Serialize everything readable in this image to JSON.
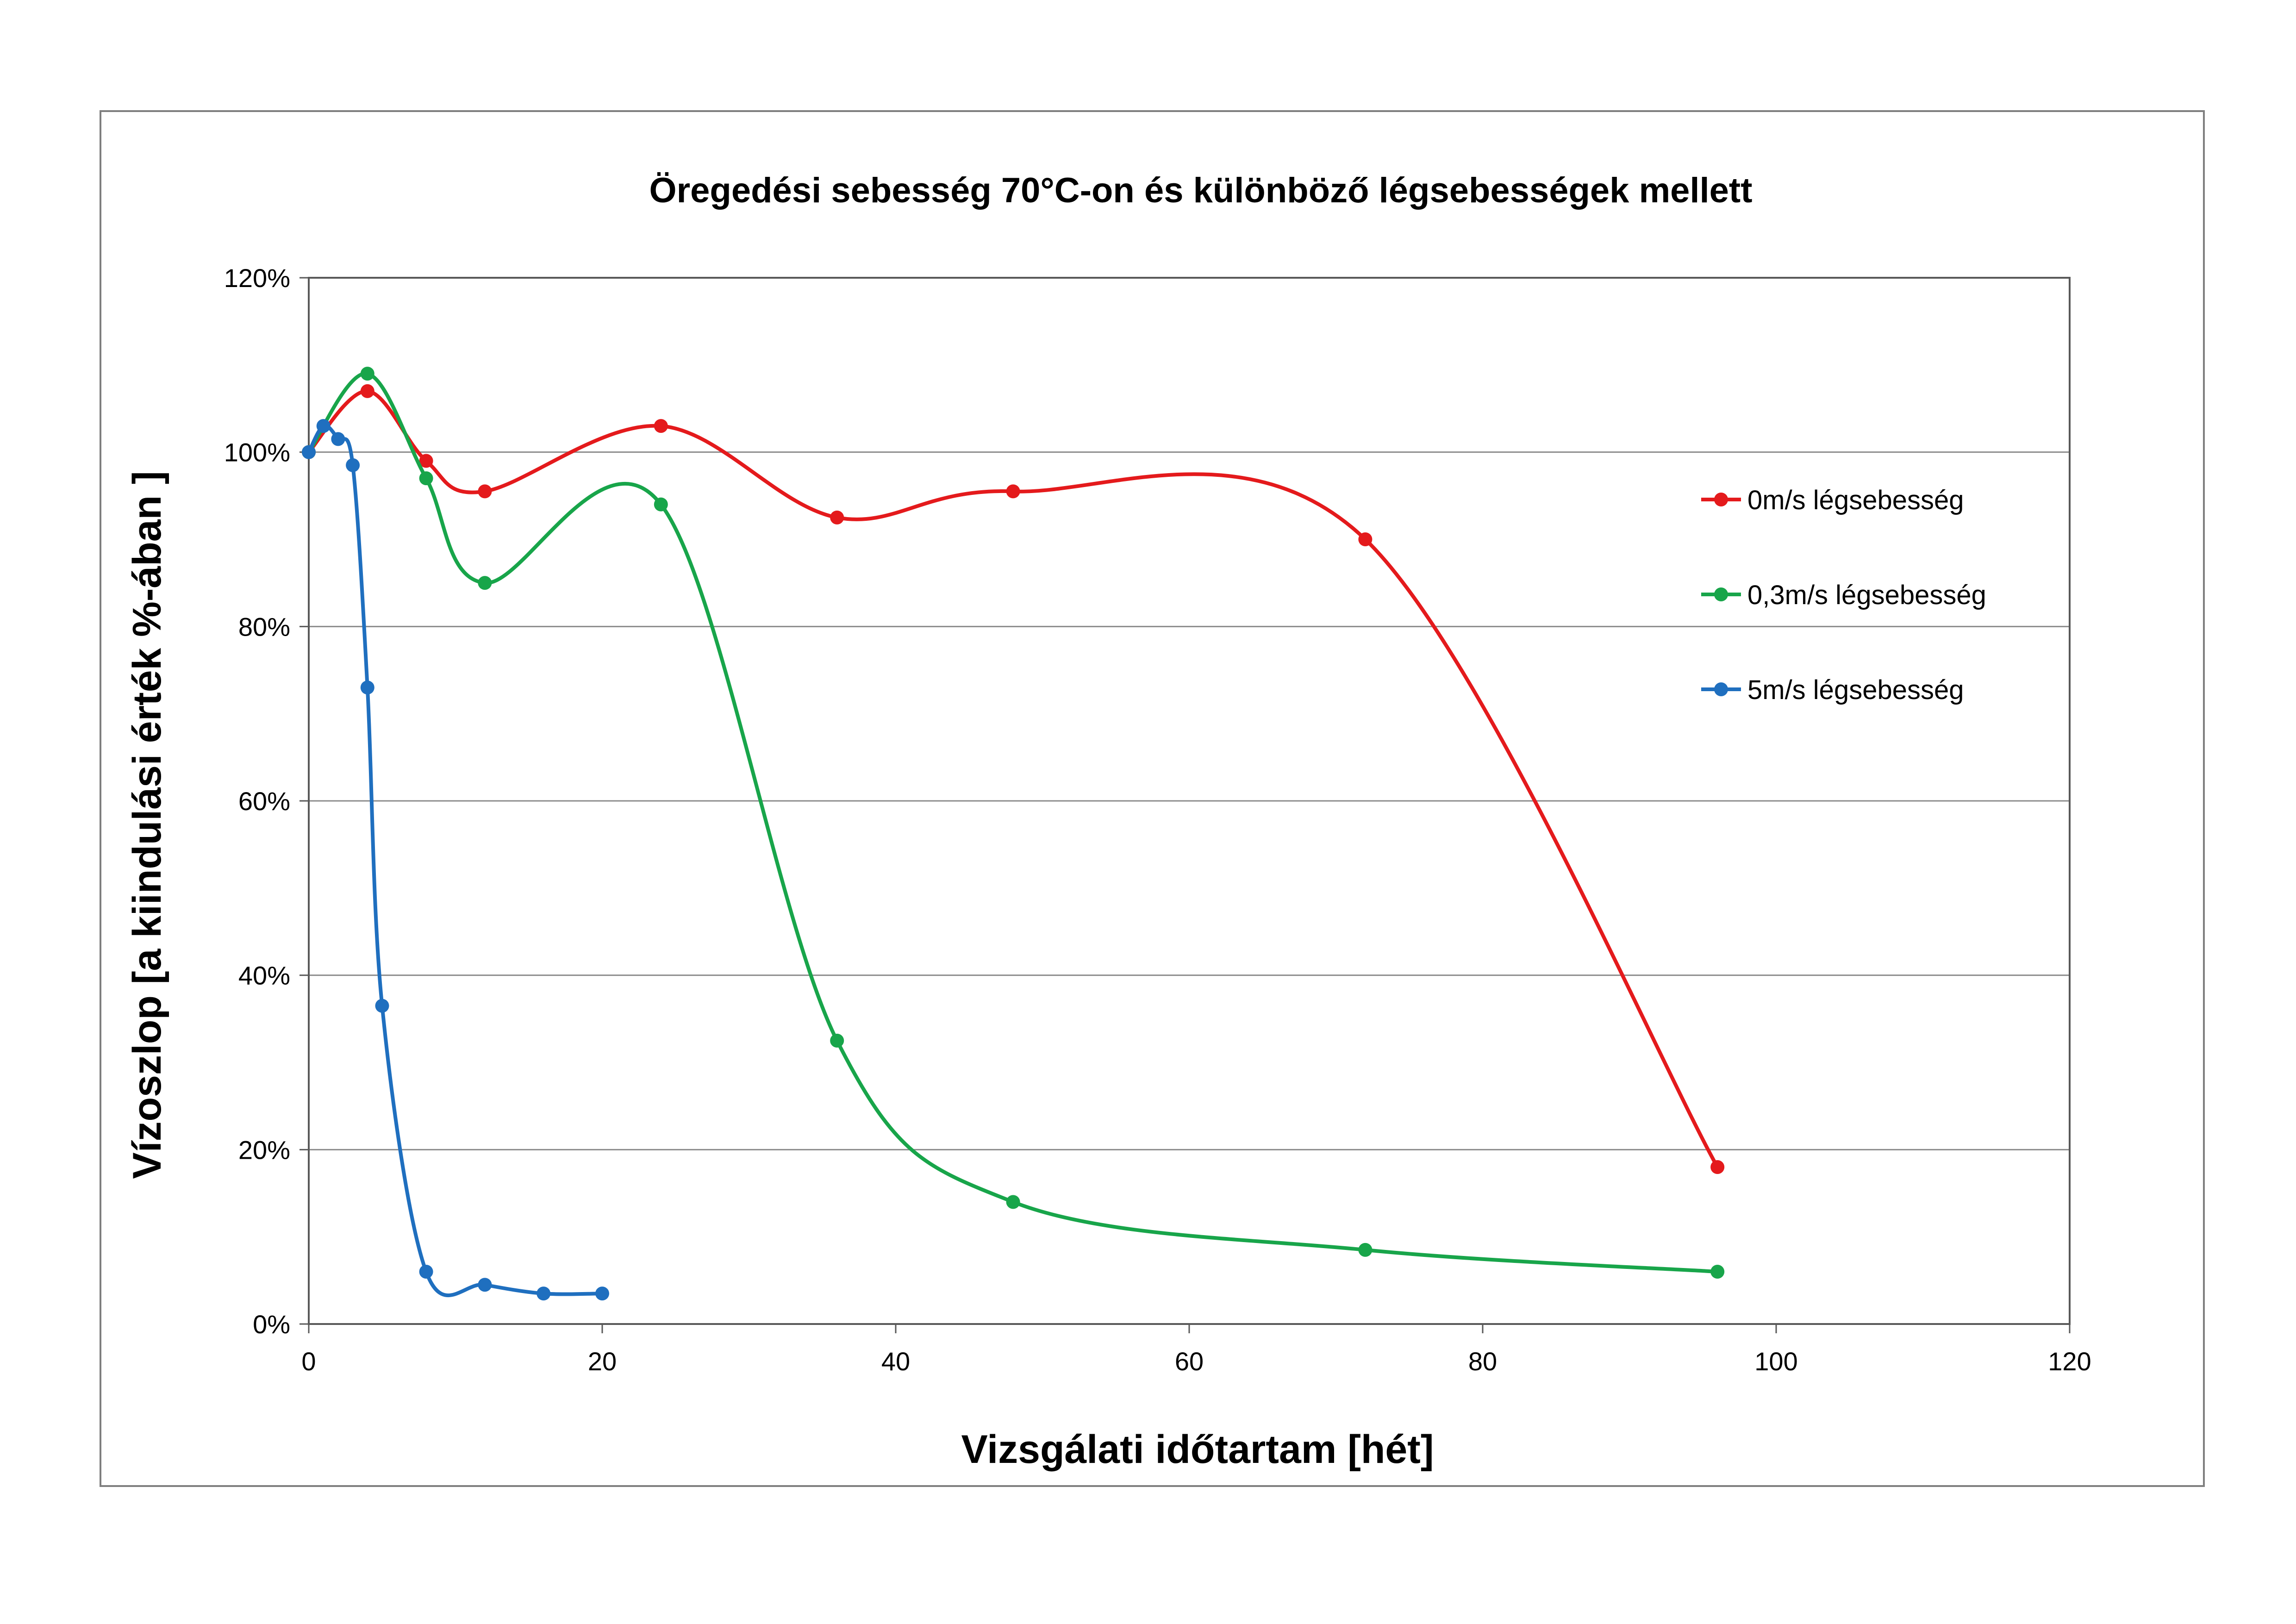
{
  "chart_data": {
    "type": "line",
    "title": "Öregedési sebesség 70°C-on és különböző légsebességek mellett",
    "xlabel": "Vizsgálati időtartam [hét]",
    "ylabel": "Vízoszlop [a kiindulási érték %-ában ]",
    "xlim": [
      0,
      120
    ],
    "ylim": [
      0,
      120
    ],
    "x_ticks": [
      0,
      20,
      40,
      60,
      80,
      100,
      120
    ],
    "x_tick_labels": [
      "0",
      "20",
      "40",
      "60",
      "80",
      "100",
      "120"
    ],
    "y_ticks": [
      0,
      20,
      40,
      60,
      80,
      100,
      120
    ],
    "y_tick_labels": [
      "0%",
      "20%",
      "40%",
      "60%",
      "80%",
      "100%",
      "120%"
    ],
    "grid": "horizontal",
    "legend_position": "right",
    "smooth": true,
    "series": [
      {
        "name": "0m/s légsebesség",
        "color": "#e41a1c",
        "x": [
          0,
          4,
          8,
          12,
          24,
          36,
          48,
          72,
          96
        ],
        "y": [
          100,
          107,
          99,
          95.5,
          103,
          92.5,
          95.5,
          90,
          18
        ]
      },
      {
        "name": "0,3m/s légsebesség",
        "color": "#18a54a",
        "x": [
          0,
          4,
          8,
          12,
          24,
          36,
          48,
          72,
          96
        ],
        "y": [
          100,
          109,
          97,
          85,
          94,
          32.5,
          14,
          8.5,
          6
        ]
      },
      {
        "name": "5m/s légsebesség",
        "color": "#1f6fbf",
        "x": [
          0,
          1,
          2,
          3,
          4,
          5,
          8,
          12,
          16,
          20
        ],
        "y": [
          100,
          103,
          101.5,
          98.5,
          73,
          36.5,
          6,
          4.5,
          3.5,
          3.5
        ]
      }
    ]
  }
}
